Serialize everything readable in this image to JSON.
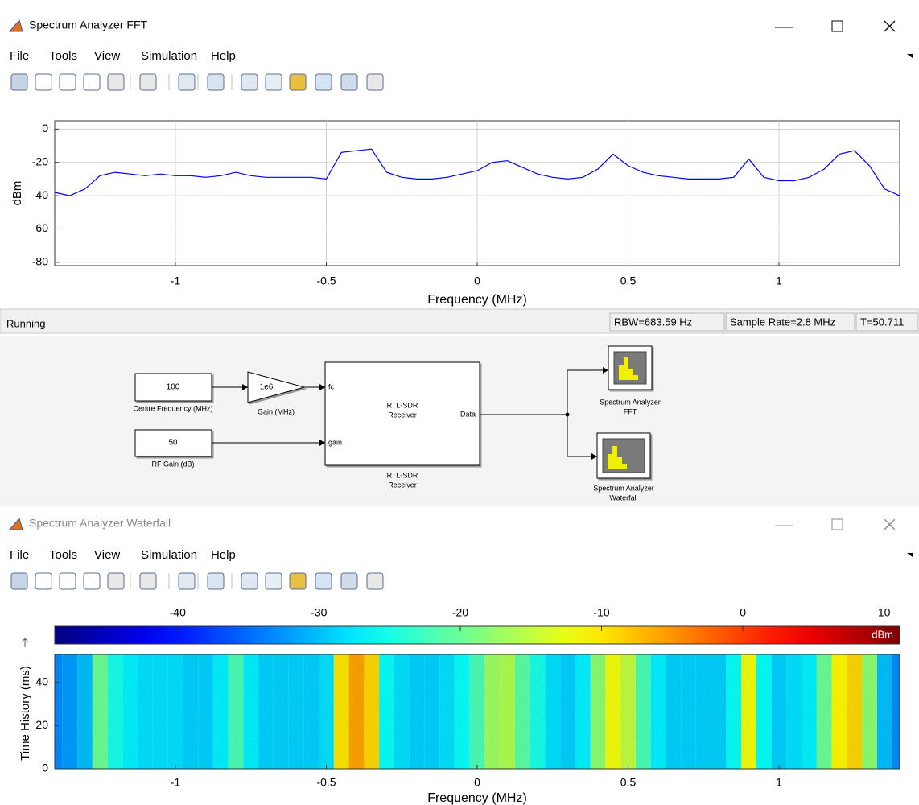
{
  "fft_window": {
    "title": "Spectrum Analyzer FFT",
    "menu": [
      "File",
      "Tools",
      "View",
      "Simulation",
      "Help"
    ],
    "status": "Running",
    "status_fields": [
      "RBW=683.59 Hz",
      "Sample Rate=2.8 MHz",
      "T=50.711"
    ],
    "chart_data": {
      "type": "line",
      "x_label": "Frequency (MHz)",
      "y_label": "dBm",
      "x": [
        -1.4,
        -1.35,
        -1.3,
        -1.25,
        -1.2,
        -1.15,
        -1.1,
        -1.05,
        -1,
        -0.95,
        -0.9,
        -0.85,
        -0.8,
        -0.75,
        -0.7,
        -0.65,
        -0.6,
        -0.55,
        -0.5,
        -0.45,
        -0.4,
        -0.35,
        -0.3,
        -0.25,
        -0.2,
        -0.15,
        -0.1,
        -0.05,
        0,
        0.05,
        0.1,
        0.15,
        0.2,
        0.25,
        0.3,
        0.35,
        0.4,
        0.45,
        0.5,
        0.55,
        0.6,
        0.65,
        0.7,
        0.75,
        0.8,
        0.85,
        0.9,
        0.95,
        1,
        1.05,
        1.1,
        1.15,
        1.2,
        1.25,
        1.3,
        1.35,
        1.4
      ],
      "series": [
        {
          "color": "#0000ff",
          "values": [
            -38,
            -40,
            -36,
            -28,
            -26,
            -27,
            -28,
            -27,
            -28,
            -28,
            -29,
            -28,
            -26,
            -28,
            -29,
            -29,
            -29,
            -29,
            -30,
            -14,
            -13,
            -12,
            -26,
            -29,
            -30,
            -30,
            -29,
            -27,
            -25,
            -20,
            -19,
            -23,
            -27,
            -29,
            -30,
            -29,
            -24,
            -15,
            -22,
            -26,
            -28,
            -29,
            -30,
            -30,
            -30,
            -29,
            -18,
            -29,
            -31,
            -31,
            -29,
            -24,
            -15,
            -13,
            -22,
            -36,
            -40
          ]
        }
      ],
      "xlim": [
        -1.4,
        1.4
      ],
      "ylim": [
        -82,
        5
      ],
      "xticks": [
        -1,
        -0.5,
        0,
        0.5,
        1
      ],
      "yticks": [
        0,
        -20,
        -40,
        -60,
        -80
      ],
      "grid": true
    }
  },
  "model": {
    "centre": {
      "value": "100",
      "label": "Centre Frequency (MHz)"
    },
    "gain": {
      "value": "1e6",
      "label": "Gain (MHz)"
    },
    "rf_gain": {
      "value": "50",
      "label": "RF Gain (dB)"
    },
    "receiver": {
      "name": [
        "RTL-SDR",
        "Receiver"
      ],
      "ports": [
        "fc",
        "gain",
        "Data"
      ],
      "label": [
        "RTL-SDR",
        "Receiver"
      ]
    },
    "fft_scope": {
      "label": [
        "Spectrum Analyzer",
        "FFT"
      ]
    },
    "waterfall_scope": {
      "label": [
        "Spectrum Analyzer",
        "Waterfall"
      ]
    }
  },
  "waterfall_window": {
    "title": "Spectrum Analyzer Waterfall",
    "menu": [
      "File",
      "Tools",
      "View",
      "Simulation",
      "Help"
    ],
    "chart_data": {
      "type": "heatmap",
      "x_label": "Frequency (MHz)",
      "y_label": "Time History (ms)",
      "colorbar_label": "dBm",
      "x": [
        -1.4,
        -1.35,
        -1.3,
        -1.25,
        -1.2,
        -1.15,
        -1.1,
        -1.05,
        -1,
        -0.95,
        -0.9,
        -0.85,
        -0.8,
        -0.75,
        -0.7,
        -0.65,
        -0.6,
        -0.55,
        -0.5,
        -0.45,
        -0.4,
        -0.35,
        -0.3,
        -0.25,
        -0.2,
        -0.15,
        -0.1,
        -0.05,
        0,
        0.05,
        0.1,
        0.15,
        0.2,
        0.25,
        0.3,
        0.35,
        0.4,
        0.45,
        0.5,
        0.55,
        0.6,
        0.65,
        0.7,
        0.75,
        0.8,
        0.85,
        0.9,
        0.95,
        1,
        1.05,
        1.1,
        1.15,
        1.2,
        1.25,
        1.3,
        1.35,
        1.4
      ],
      "values": [
        -33,
        -32,
        -30,
        -20,
        -25,
        -27,
        -28,
        -28,
        -28,
        -29,
        -29,
        -27,
        -22,
        -27,
        -29,
        -29,
        -29,
        -29,
        -28,
        -10,
        -6,
        -9,
        -26,
        -28,
        -29,
        -29,
        -28,
        -26,
        -22,
        -17,
        -16,
        -21,
        -25,
        -28,
        -29,
        -27,
        -18,
        -12,
        -15,
        -22,
        -27,
        -29,
        -29,
        -29,
        -29,
        -26,
        -12,
        -26,
        -29,
        -28,
        -27,
        -20,
        -11,
        -9,
        -18,
        -30,
        -33
      ],
      "xlim": [
        -1.4,
        1.4
      ],
      "ylim": [
        0,
        53
      ],
      "xticks": [
        -1,
        -0.5,
        0,
        0.5,
        1
      ],
      "yticks": [
        0,
        20,
        40
      ],
      "clim": [
        -48.7,
        11.1
      ],
      "cticks": [
        -40,
        -30,
        -20,
        -10,
        0,
        10
      ]
    }
  }
}
